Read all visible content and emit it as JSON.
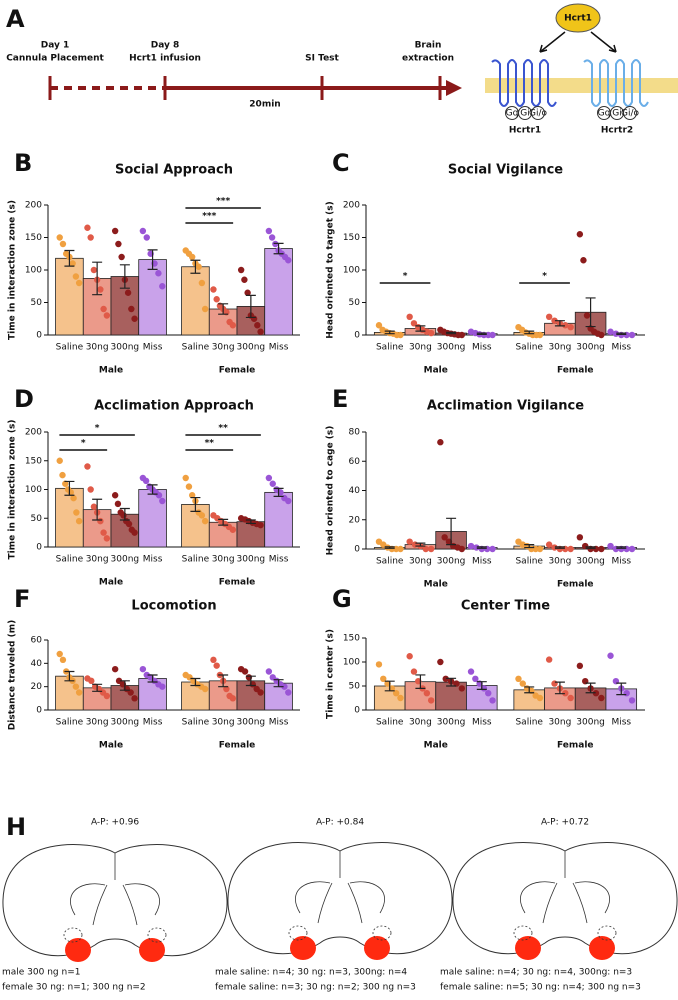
{
  "panel_a": {
    "label": "A",
    "events": [
      {
        "lines": [
          "Day 1",
          "Cannula Placement"
        ]
      },
      {
        "lines": [
          "Day 8",
          "Hcrt1 infusion"
        ]
      },
      {
        "lines": [
          "SI Test"
        ]
      },
      {
        "lines": [
          "Brain",
          "extraction"
        ]
      }
    ],
    "interval": "20min",
    "ligand": "Hcrt1",
    "receptors": [
      {
        "name": "Hcrtr1",
        "g_proteins": [
          "Gq",
          "Gi",
          "Gi/o"
        ]
      },
      {
        "name": "Hcrtr2",
        "g_proteins": [
          "Gq",
          "Gi",
          "Gi/o"
        ]
      }
    ]
  },
  "chart_data": [
    {
      "type": "bar",
      "panel": "B",
      "title": "Social Approach",
      "y_label": "Time in interaction zone (s)",
      "categories": [
        "Saline",
        "30ng",
        "300ng",
        "Miss"
      ],
      "colors": [
        "#f5c28c",
        "#eb9a8a",
        "#a8605e",
        "#c9a2ea"
      ],
      "point_colors": [
        "#f0a040",
        "#e05a48",
        "#8c1c1c",
        "#9a55d6"
      ],
      "ylim": [
        0,
        200
      ],
      "yticks": [
        0,
        50,
        100,
        150,
        200
      ],
      "series": [
        {
          "name": "Male",
          "values": [
            118,
            87,
            90,
            116
          ],
          "errors": [
            12,
            25,
            18,
            15
          ],
          "points": [
            [
              150,
              140,
              125,
              120,
              110,
              90,
              80
            ],
            [
              165,
              150,
              100,
              85,
              70,
              40,
              30
            ],
            [
              160,
              140,
              120,
              85,
              65,
              40,
              25
            ],
            [
              160,
              150,
              125,
              110,
              95,
              75
            ]
          ],
          "significance": []
        },
        {
          "name": "Female",
          "values": [
            105,
            40,
            44,
            133
          ],
          "errors": [
            10,
            8,
            17,
            8
          ],
          "points": [
            [
              130,
              125,
              120,
              110,
              105,
              80,
              40
            ],
            [
              70,
              55,
              45,
              40,
              35,
              20,
              15
            ],
            [
              100,
              85,
              65,
              30,
              25,
              15,
              5
            ],
            [
              160,
              150,
              140,
              130,
              125,
              120,
              115
            ]
          ],
          "significance": [
            {
              "label": "***",
              "pair": [
                0,
                1
              ]
            },
            {
              "label": "***",
              "pair": [
                0,
                2
              ]
            }
          ]
        }
      ]
    },
    {
      "type": "bar",
      "panel": "C",
      "title": "Social Vigilance",
      "y_label": "Head oriented to target (s)",
      "categories": [
        "Saline",
        "30ng",
        "300ng",
        "Miss"
      ],
      "colors": [
        "#f5c28c",
        "#eb9a8a",
        "#a8605e",
        "#c9a2ea"
      ],
      "point_colors": [
        "#f0a040",
        "#e05a48",
        "#8c1c1c",
        "#9a55d6"
      ],
      "ylim": [
        0,
        200
      ],
      "yticks": [
        0,
        50,
        100,
        150,
        200
      ],
      "series": [
        {
          "name": "Male",
          "values": [
            4,
            10,
            3,
            2
          ],
          "errors": [
            2,
            4,
            1,
            1
          ],
          "points": [
            [
              15,
              8,
              5,
              3,
              2,
              0,
              0
            ],
            [
              28,
              18,
              12,
              8,
              5,
              3
            ],
            [
              8,
              5,
              3,
              2,
              1,
              0,
              0
            ],
            [
              5,
              3,
              1,
              0,
              0,
              0
            ]
          ],
          "significance": [
            {
              "label": "*",
              "pair": [
                0,
                1
              ]
            }
          ]
        },
        {
          "name": "Female",
          "values": [
            4,
            18,
            35,
            2
          ],
          "errors": [
            2,
            4,
            22,
            1
          ],
          "points": [
            [
              12,
              8,
              4,
              2,
              0,
              0,
              0
            ],
            [
              28,
              22,
              18,
              15,
              12
            ],
            [
              155,
              115,
              30,
              10,
              5,
              2,
              0
            ],
            [
              5,
              2,
              0,
              0,
              0
            ]
          ],
          "significance": [
            {
              "label": "*",
              "pair": [
                0,
                1
              ]
            }
          ]
        }
      ]
    },
    {
      "type": "bar",
      "panel": "D",
      "title": "Acclimation Approach",
      "y_label": "Time in interaction zone (s)",
      "categories": [
        "Saline",
        "30ng",
        "300ng",
        "Miss"
      ],
      "colors": [
        "#f5c28c",
        "#eb9a8a",
        "#a8605e",
        "#c9a2ea"
      ],
      "point_colors": [
        "#f0a040",
        "#e05a48",
        "#8c1c1c",
        "#9a55d6"
      ],
      "ylim": [
        0,
        200
      ],
      "yticks": [
        0,
        50,
        100,
        150,
        200
      ],
      "series": [
        {
          "name": "Male",
          "values": [
            102,
            65,
            57,
            100
          ],
          "errors": [
            12,
            18,
            10,
            8
          ],
          "points": [
            [
              150,
              125,
              110,
              100,
              95,
              85,
              60,
              45
            ],
            [
              140,
              100,
              70,
              60,
              45,
              25,
              15
            ],
            [
              90,
              75,
              60,
              55,
              45,
              40,
              30,
              25
            ],
            [
              120,
              115,
              105,
              100,
              95,
              90,
              80
            ]
          ],
          "significance": [
            {
              "label": "*",
              "pair": [
                0,
                1
              ]
            },
            {
              "label": "*",
              "pair": [
                0,
                2
              ]
            }
          ]
        },
        {
          "name": "Female",
          "values": [
            74,
            43,
            44,
            95
          ],
          "errors": [
            12,
            5,
            3,
            7
          ],
          "points": [
            [
              120,
              105,
              90,
              80,
              60,
              55,
              45
            ],
            [
              55,
              50,
              45,
              40,
              35,
              30
            ],
            [
              50,
              48,
              45,
              42,
              40,
              38
            ],
            [
              120,
              110,
              100,
              95,
              85,
              80
            ]
          ],
          "significance": [
            {
              "label": "**",
              "pair": [
                0,
                1
              ]
            },
            {
              "label": "**",
              "pair": [
                0,
                2
              ]
            }
          ]
        }
      ]
    },
    {
      "type": "bar",
      "panel": "E",
      "title": "Acclimation Vigilance",
      "y_label": "Head oriented to cage (s)",
      "categories": [
        "Saline",
        "30ng",
        "300ng",
        "Miss"
      ],
      "colors": [
        "#f5c28c",
        "#eb9a8a",
        "#a8605e",
        "#c9a2ea"
      ],
      "point_colors": [
        "#f0a040",
        "#e05a48",
        "#8c1c1c",
        "#9a55d6"
      ],
      "ylim": [
        0,
        80
      ],
      "yticks": [
        0,
        20,
        40,
        60,
        80
      ],
      "series": [
        {
          "name": "Male",
          "values": [
            1,
            3,
            12,
            1
          ],
          "errors": [
            0.5,
            1,
            9,
            0.5
          ],
          "points": [
            [
              5,
              3,
              1,
              0,
              0,
              0
            ],
            [
              5,
              3,
              2,
              0,
              0
            ],
            [
              73,
              8,
              5,
              2,
              1,
              0
            ],
            [
              2,
              1,
              0,
              0,
              0
            ]
          ],
          "significance": []
        },
        {
          "name": "Female",
          "values": [
            2,
            1,
            1,
            1
          ],
          "errors": [
            1,
            0.5,
            0.5,
            0.5
          ],
          "points": [
            [
              5,
              3,
              2,
              0,
              0,
              0
            ],
            [
              3,
              1,
              0,
              0,
              0
            ],
            [
              8,
              2,
              0,
              0,
              0
            ],
            [
              2,
              0,
              0,
              0,
              0
            ]
          ],
          "significance": []
        }
      ]
    },
    {
      "type": "bar",
      "panel": "F",
      "title": "Locomotion",
      "y_label": "Distance traveled (m)",
      "categories": [
        "Saline",
        "30ng",
        "300ng",
        "Miss"
      ],
      "colors": [
        "#f5c28c",
        "#eb9a8a",
        "#a8605e",
        "#c9a2ea"
      ],
      "point_colors": [
        "#f0a040",
        "#e05a48",
        "#8c1c1c",
        "#9a55d6"
      ],
      "ylim": [
        0,
        60
      ],
      "yticks": [
        0,
        20,
        40,
        60
      ],
      "series": [
        {
          "name": "Male",
          "values": [
            29,
            19,
            21,
            27
          ],
          "errors": [
            4,
            3,
            4,
            3
          ],
          "points": [
            [
              48,
              43,
              33,
              28,
              25,
              20,
              15
            ],
            [
              27,
              25,
              20,
              18,
              15,
              12
            ],
            [
              35,
              25,
              22,
              18,
              15,
              10
            ],
            [
              35,
              30,
              28,
              25,
              22,
              20
            ]
          ],
          "significance": []
        },
        {
          "name": "Female",
          "values": [
            24,
            25,
            25,
            23
          ],
          "errors": [
            3,
            5,
            4,
            3
          ],
          "points": [
            [
              30,
              28,
              25,
              22,
              20,
              18
            ],
            [
              43,
              38,
              30,
              25,
              18,
              12,
              10
            ],
            [
              35,
              33,
              28,
              22,
              18,
              15
            ],
            [
              33,
              28,
              25,
              22,
              20,
              15
            ]
          ],
          "significance": []
        }
      ]
    },
    {
      "type": "bar",
      "panel": "G",
      "title": "Center Time",
      "y_label": "Time in center (s)",
      "categories": [
        "Saline",
        "30ng",
        "300ng",
        "Miss"
      ],
      "colors": [
        "#f5c28c",
        "#eb9a8a",
        "#a8605e",
        "#c9a2ea"
      ],
      "point_colors": [
        "#f0a040",
        "#e05a48",
        "#8c1c1c",
        "#9a55d6"
      ],
      "ylim": [
        0,
        150
      ],
      "yticks": [
        0,
        50,
        100,
        150
      ],
      "series": [
        {
          "name": "Male",
          "values": [
            50,
            59,
            58,
            51
          ],
          "errors": [
            10,
            14,
            8,
            8
          ],
          "points": [
            [
              95,
              65,
              55,
              45,
              35,
              25
            ],
            [
              112,
              80,
              60,
              45,
              35,
              20
            ],
            [
              100,
              65,
              60,
              55,
              45
            ],
            [
              80,
              65,
              55,
              45,
              35,
              20
            ]
          ],
          "significance": []
        },
        {
          "name": "Female",
          "values": [
            42,
            46,
            46,
            44
          ],
          "errors": [
            6,
            12,
            10,
            12
          ],
          "points": [
            [
              65,
              55,
              45,
              40,
              30,
              25
            ],
            [
              105,
              55,
              45,
              35,
              25
            ],
            [
              92,
              60,
              45,
              35,
              25
            ],
            [
              113,
              60,
              45,
              35,
              20
            ]
          ],
          "significance": []
        }
      ]
    }
  ],
  "panel_h": {
    "label": "H",
    "sections": [
      {
        "level": "A-P: +0.96",
        "notes": [
          "male 300 ng n=1",
          "female 30 ng: n=1; 300 ng n=2"
        ]
      },
      {
        "level": "A-P: +0.84",
        "notes": [
          "male saline: n=4; 30 ng: n=3, 300ng: n=4",
          "female saline: n=3; 30 ng: n=2; 300 ng n=3"
        ]
      },
      {
        "level": "A-P: +0.72",
        "notes": [
          "male saline: n=4; 30 ng: n=4, 300ng: n=3",
          "female saline: n=5; 30 ng: n=4; 300 ng n=3"
        ]
      }
    ]
  }
}
